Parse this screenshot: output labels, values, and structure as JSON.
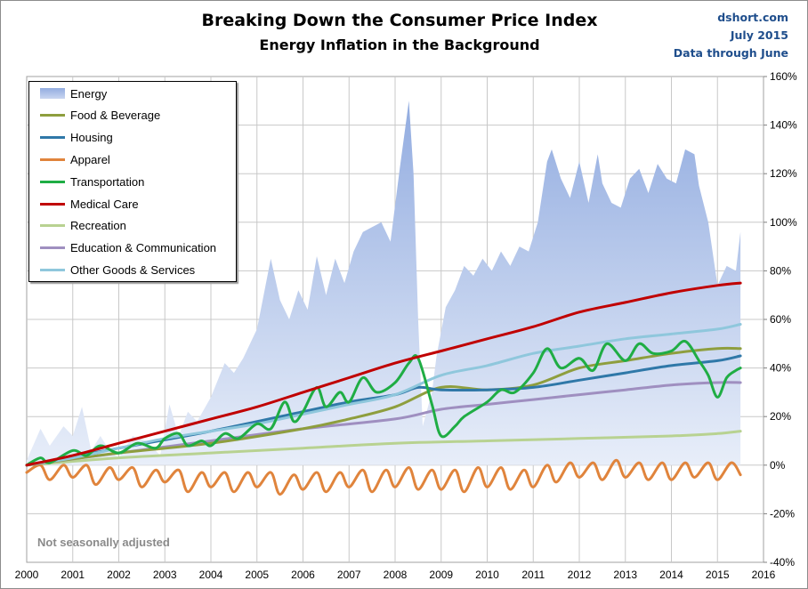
{
  "title": "Breaking Down the Consumer Price Index",
  "subtitle": "Energy Inflation in the Background",
  "source": {
    "site": "dshort.com",
    "date": "July 2015",
    "coverage": "Data through June"
  },
  "note": "Not seasonally adjusted",
  "chart_data": {
    "type": "line",
    "background_series": "Energy",
    "x_axis": {
      "min": 2000,
      "max": 2016,
      "ticks": [
        "2000",
        "2001",
        "2002",
        "2003",
        "2004",
        "2005",
        "2006",
        "2007",
        "2008",
        "2009",
        "2010",
        "2011",
        "2012",
        "2013",
        "2014",
        "2015",
        "2016"
      ]
    },
    "y_axis": {
      "side": "right",
      "min": -40,
      "max": 160,
      "unit": "%",
      "ticks": [
        "-40%",
        "-20%",
        "0%",
        "20%",
        "40%",
        "60%",
        "80%",
        "100%",
        "120%",
        "140%",
        "160%"
      ],
      "grid": true
    },
    "legend_position": "top-left",
    "series": [
      {
        "name": "Energy",
        "kind": "area",
        "color": "#a9bde6",
        "x": [
          2000.0,
          2000.3,
          2000.5,
          2000.8,
          2001.0,
          2001.2,
          2001.4,
          2001.6,
          2001.8,
          2002.0,
          2002.3,
          2002.6,
          2002.9,
          2003.1,
          2003.3,
          2003.5,
          2003.7,
          2004.0,
          2004.3,
          2004.5,
          2004.7,
          2005.0,
          2005.3,
          2005.5,
          2005.7,
          2005.9,
          2006.1,
          2006.3,
          2006.5,
          2006.7,
          2006.9,
          2007.1,
          2007.3,
          2007.5,
          2007.7,
          2007.9,
          2008.1,
          2008.3,
          2008.4,
          2008.5,
          2008.6,
          2008.8,
          2008.9,
          2009.1,
          2009.3,
          2009.5,
          2009.7,
          2009.9,
          2010.1,
          2010.3,
          2010.5,
          2010.7,
          2010.9,
          2011.1,
          2011.3,
          2011.4,
          2011.6,
          2011.8,
          2012.0,
          2012.2,
          2012.4,
          2012.5,
          2012.7,
          2012.9,
          2013.1,
          2013.3,
          2013.5,
          2013.7,
          2013.9,
          2014.1,
          2014.3,
          2014.5,
          2014.6,
          2014.8,
          2015.0,
          2015.2,
          2015.4,
          2015.5
        ],
        "values": [
          2,
          15,
          8,
          16,
          12,
          24,
          6,
          12,
          6,
          3,
          12,
          10,
          4,
          25,
          12,
          22,
          18,
          28,
          42,
          38,
          44,
          56,
          85,
          68,
          60,
          72,
          64,
          86,
          70,
          85,
          75,
          88,
          96,
          98,
          100,
          92,
          122,
          150,
          120,
          60,
          16,
          30,
          45,
          65,
          72,
          82,
          78,
          85,
          80,
          88,
          82,
          90,
          88,
          100,
          125,
          130,
          118,
          110,
          125,
          108,
          128,
          116,
          108,
          106,
          118,
          122,
          112,
          124,
          118,
          116,
          130,
          128,
          115,
          100,
          74,
          82,
          80,
          96
        ]
      },
      {
        "name": "Food & Beverage",
        "kind": "line",
        "color": "#8e9e3e",
        "x": [
          2000,
          2002,
          2004,
          2006,
          2007,
          2008,
          2009,
          2010,
          2011,
          2012,
          2013,
          2014,
          2015,
          2015.5
        ],
        "values": [
          0,
          5,
          9,
          15,
          19,
          24,
          32,
          31,
          33,
          40,
          43,
          46,
          48,
          48
        ]
      },
      {
        "name": "Housing",
        "kind": "line",
        "color": "#2f78a8",
        "x": [
          2000,
          2002,
          2004,
          2006,
          2007,
          2008,
          2008.5,
          2009,
          2010,
          2011,
          2012,
          2013,
          2014,
          2015,
          2015.5
        ],
        "values": [
          0,
          7,
          14,
          22,
          26,
          29,
          32,
          31,
          31,
          32,
          35,
          38,
          41,
          43,
          45
        ]
      },
      {
        "name": "Apparel",
        "kind": "line",
        "color": "#e0843c",
        "x": [
          2000.0,
          2000.3,
          2000.5,
          2000.8,
          2001.0,
          2001.3,
          2001.5,
          2001.8,
          2002.0,
          2002.3,
          2002.5,
          2002.8,
          2003.0,
          2003.3,
          2003.5,
          2003.8,
          2004.0,
          2004.3,
          2004.5,
          2004.8,
          2005.0,
          2005.3,
          2005.5,
          2005.8,
          2006.0,
          2006.3,
          2006.5,
          2006.8,
          2007.0,
          2007.3,
          2007.5,
          2007.8,
          2008.0,
          2008.3,
          2008.5,
          2008.8,
          2009.0,
          2009.3,
          2009.5,
          2009.8,
          2010.0,
          2010.3,
          2010.5,
          2010.8,
          2011.0,
          2011.3,
          2011.5,
          2011.8,
          2012.0,
          2012.3,
          2012.5,
          2012.8,
          2013.0,
          2013.3,
          2013.5,
          2013.8,
          2014.0,
          2014.3,
          2014.5,
          2014.8,
          2015.0,
          2015.3,
          2015.5
        ],
        "values": [
          -3,
          0,
          -6,
          0,
          -5,
          0,
          -8,
          -1,
          -6,
          -1,
          -9,
          -2,
          -7,
          -2,
          -11,
          -3,
          -9,
          -3,
          -11,
          -3,
          -9,
          -3,
          -12,
          -4,
          -10,
          -3,
          -11,
          -3,
          -9,
          -2,
          -11,
          -2,
          -9,
          -1,
          -10,
          -2,
          -10,
          -2,
          -11,
          -1,
          -9,
          -1,
          -10,
          -2,
          -9,
          0,
          -7,
          1,
          -5,
          1,
          -6,
          2,
          -5,
          1,
          -6,
          1,
          -6,
          1,
          -5,
          1,
          -6,
          1,
          -4
        ]
      },
      {
        "name": "Transportation",
        "kind": "line",
        "color": "#1fad44",
        "x": [
          2000.0,
          2000.3,
          2000.5,
          2001.0,
          2001.3,
          2001.6,
          2002.0,
          2002.4,
          2002.8,
          2003.0,
          2003.3,
          2003.5,
          2003.8,
          2004.0,
          2004.3,
          2004.6,
          2005.0,
          2005.3,
          2005.6,
          2005.8,
          2006.0,
          2006.3,
          2006.5,
          2006.8,
          2007.0,
          2007.3,
          2007.6,
          2008.0,
          2008.3,
          2008.5,
          2008.8,
          2009.0,
          2009.3,
          2009.5,
          2010.0,
          2010.3,
          2010.6,
          2011.0,
          2011.3,
          2011.6,
          2012.0,
          2012.3,
          2012.6,
          2013.0,
          2013.3,
          2013.6,
          2014.0,
          2014.3,
          2014.6,
          2014.8,
          2015.0,
          2015.2,
          2015.4,
          2015.5
        ],
        "values": [
          0,
          3,
          1,
          6,
          4,
          8,
          5,
          9,
          7,
          11,
          13,
          8,
          10,
          8,
          13,
          11,
          17,
          15,
          26,
          18,
          22,
          32,
          24,
          30,
          26,
          36,
          30,
          34,
          42,
          44,
          25,
          12,
          16,
          20,
          26,
          31,
          30,
          38,
          48,
          40,
          44,
          39,
          50,
          43,
          50,
          46,
          47,
          51,
          43,
          37,
          28,
          36,
          39,
          40
        ]
      },
      {
        "name": "Medical Care",
        "kind": "line",
        "color": "#c00000",
        "x": [
          2000,
          2001,
          2002,
          2003,
          2004,
          2005,
          2006,
          2007,
          2008,
          2009,
          2010,
          2011,
          2012,
          2013,
          2014,
          2015,
          2015.5
        ],
        "values": [
          0,
          4,
          9,
          14,
          19,
          24,
          30,
          36,
          42,
          47,
          52,
          57,
          63,
          67,
          71,
          74,
          75
        ]
      },
      {
        "name": "Recreation",
        "kind": "line",
        "color": "#b8d291",
        "x": [
          2000,
          2002,
          2004,
          2006,
          2008,
          2010,
          2012,
          2014,
          2015,
          2015.5
        ],
        "values": [
          0,
          3,
          5,
          7,
          9,
          10,
          11,
          12,
          13,
          14
        ]
      },
      {
        "name": "Education & Communication",
        "kind": "line",
        "color": "#9f8fc0",
        "x": [
          2000,
          2002,
          2004,
          2006,
          2008,
          2009,
          2010,
          2011,
          2012,
          2013,
          2014,
          2015,
          2015.5
        ],
        "values": [
          0,
          5,
          10,
          15,
          19,
          23,
          25,
          27,
          29,
          31,
          33,
          34,
          34
        ]
      },
      {
        "name": "Other Goods & Services",
        "kind": "line",
        "color": "#8fc7dc",
        "x": [
          2000,
          2001,
          2002,
          2003,
          2004,
          2005,
          2006,
          2007,
          2008,
          2009,
          2010,
          2011,
          2012,
          2013,
          2014,
          2015,
          2015.5
        ],
        "values": [
          0,
          3,
          7,
          11,
          14,
          17,
          21,
          25,
          29,
          37,
          41,
          46,
          49,
          52,
          54,
          56,
          58
        ]
      }
    ]
  },
  "legend": [
    {
      "label": "Energy",
      "kind": "area",
      "color": "#a9bde6"
    },
    {
      "label": "Food & Beverage",
      "kind": "line",
      "color": "#8e9e3e"
    },
    {
      "label": "Housing",
      "kind": "line",
      "color": "#2f78a8"
    },
    {
      "label": "Apparel",
      "kind": "line",
      "color": "#e0843c"
    },
    {
      "label": "Transportation",
      "kind": "line",
      "color": "#1fad44"
    },
    {
      "label": "Medical Care",
      "kind": "line",
      "color": "#c00000"
    },
    {
      "label": "Recreation",
      "kind": "line",
      "color": "#b8d291"
    },
    {
      "label": "Education & Communication",
      "kind": "line",
      "color": "#9f8fc0"
    },
    {
      "label": "Other Goods & Services",
      "kind": "line",
      "color": "#8fc7dc"
    }
  ]
}
